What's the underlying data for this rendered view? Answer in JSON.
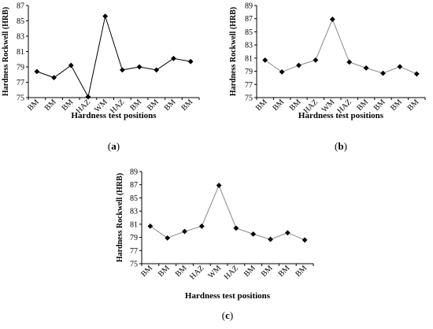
{
  "chart_data": [
    {
      "type": "line",
      "caption": "a",
      "categories": [
        "BM",
        "BM",
        "BM",
        "HAZ",
        "WM",
        "HAZ",
        "BM",
        "BM",
        "BM",
        "BM"
      ],
      "values": [
        78.4,
        77.6,
        79.2,
        75.1,
        85.6,
        78.6,
        79.0,
        78.6,
        80.1,
        79.7
      ],
      "xlabel": "Hardness test positions",
      "ylabel": "Hardness Rockwell (HRB)",
      "ylim": [
        75,
        87
      ],
      "yticks": [
        75,
        77,
        79,
        81,
        83,
        85,
        87
      ],
      "marker": "diamond",
      "line_color": "#000000",
      "grid": false
    },
    {
      "type": "line",
      "caption": "b",
      "categories": [
        "BM",
        "BM",
        "BM",
        "HAZ",
        "WM",
        "HAZ",
        "BM",
        "BM",
        "BM",
        "BM"
      ],
      "values": [
        80.7,
        78.9,
        79.9,
        80.7,
        86.9,
        80.4,
        79.5,
        78.7,
        79.7,
        78.6
      ],
      "xlabel": "Hardness test positions",
      "ylabel": "Hardness Rockwell (HRB)",
      "ylim": [
        75,
        89
      ],
      "yticks": [
        75,
        77,
        79,
        81,
        83,
        85,
        87,
        89
      ],
      "marker": "diamond",
      "line_color": "#888888",
      "grid": false
    },
    {
      "type": "line",
      "caption": "c",
      "categories": [
        "BM",
        "BM",
        "BM",
        "HAZ",
        "WM",
        "HAZ",
        "BM",
        "BM",
        "BM",
        "BM"
      ],
      "values": [
        80.7,
        78.9,
        79.9,
        80.7,
        86.9,
        80.4,
        79.5,
        78.7,
        79.7,
        78.6
      ],
      "xlabel": "Hardness test positions",
      "ylabel": "Hardness Rockwell (HRB)",
      "ylim": [
        75,
        89
      ],
      "yticks": [
        75,
        77,
        79,
        81,
        83,
        85,
        87,
        89
      ],
      "marker": "diamond",
      "line_color": "#888888",
      "grid": false
    }
  ]
}
